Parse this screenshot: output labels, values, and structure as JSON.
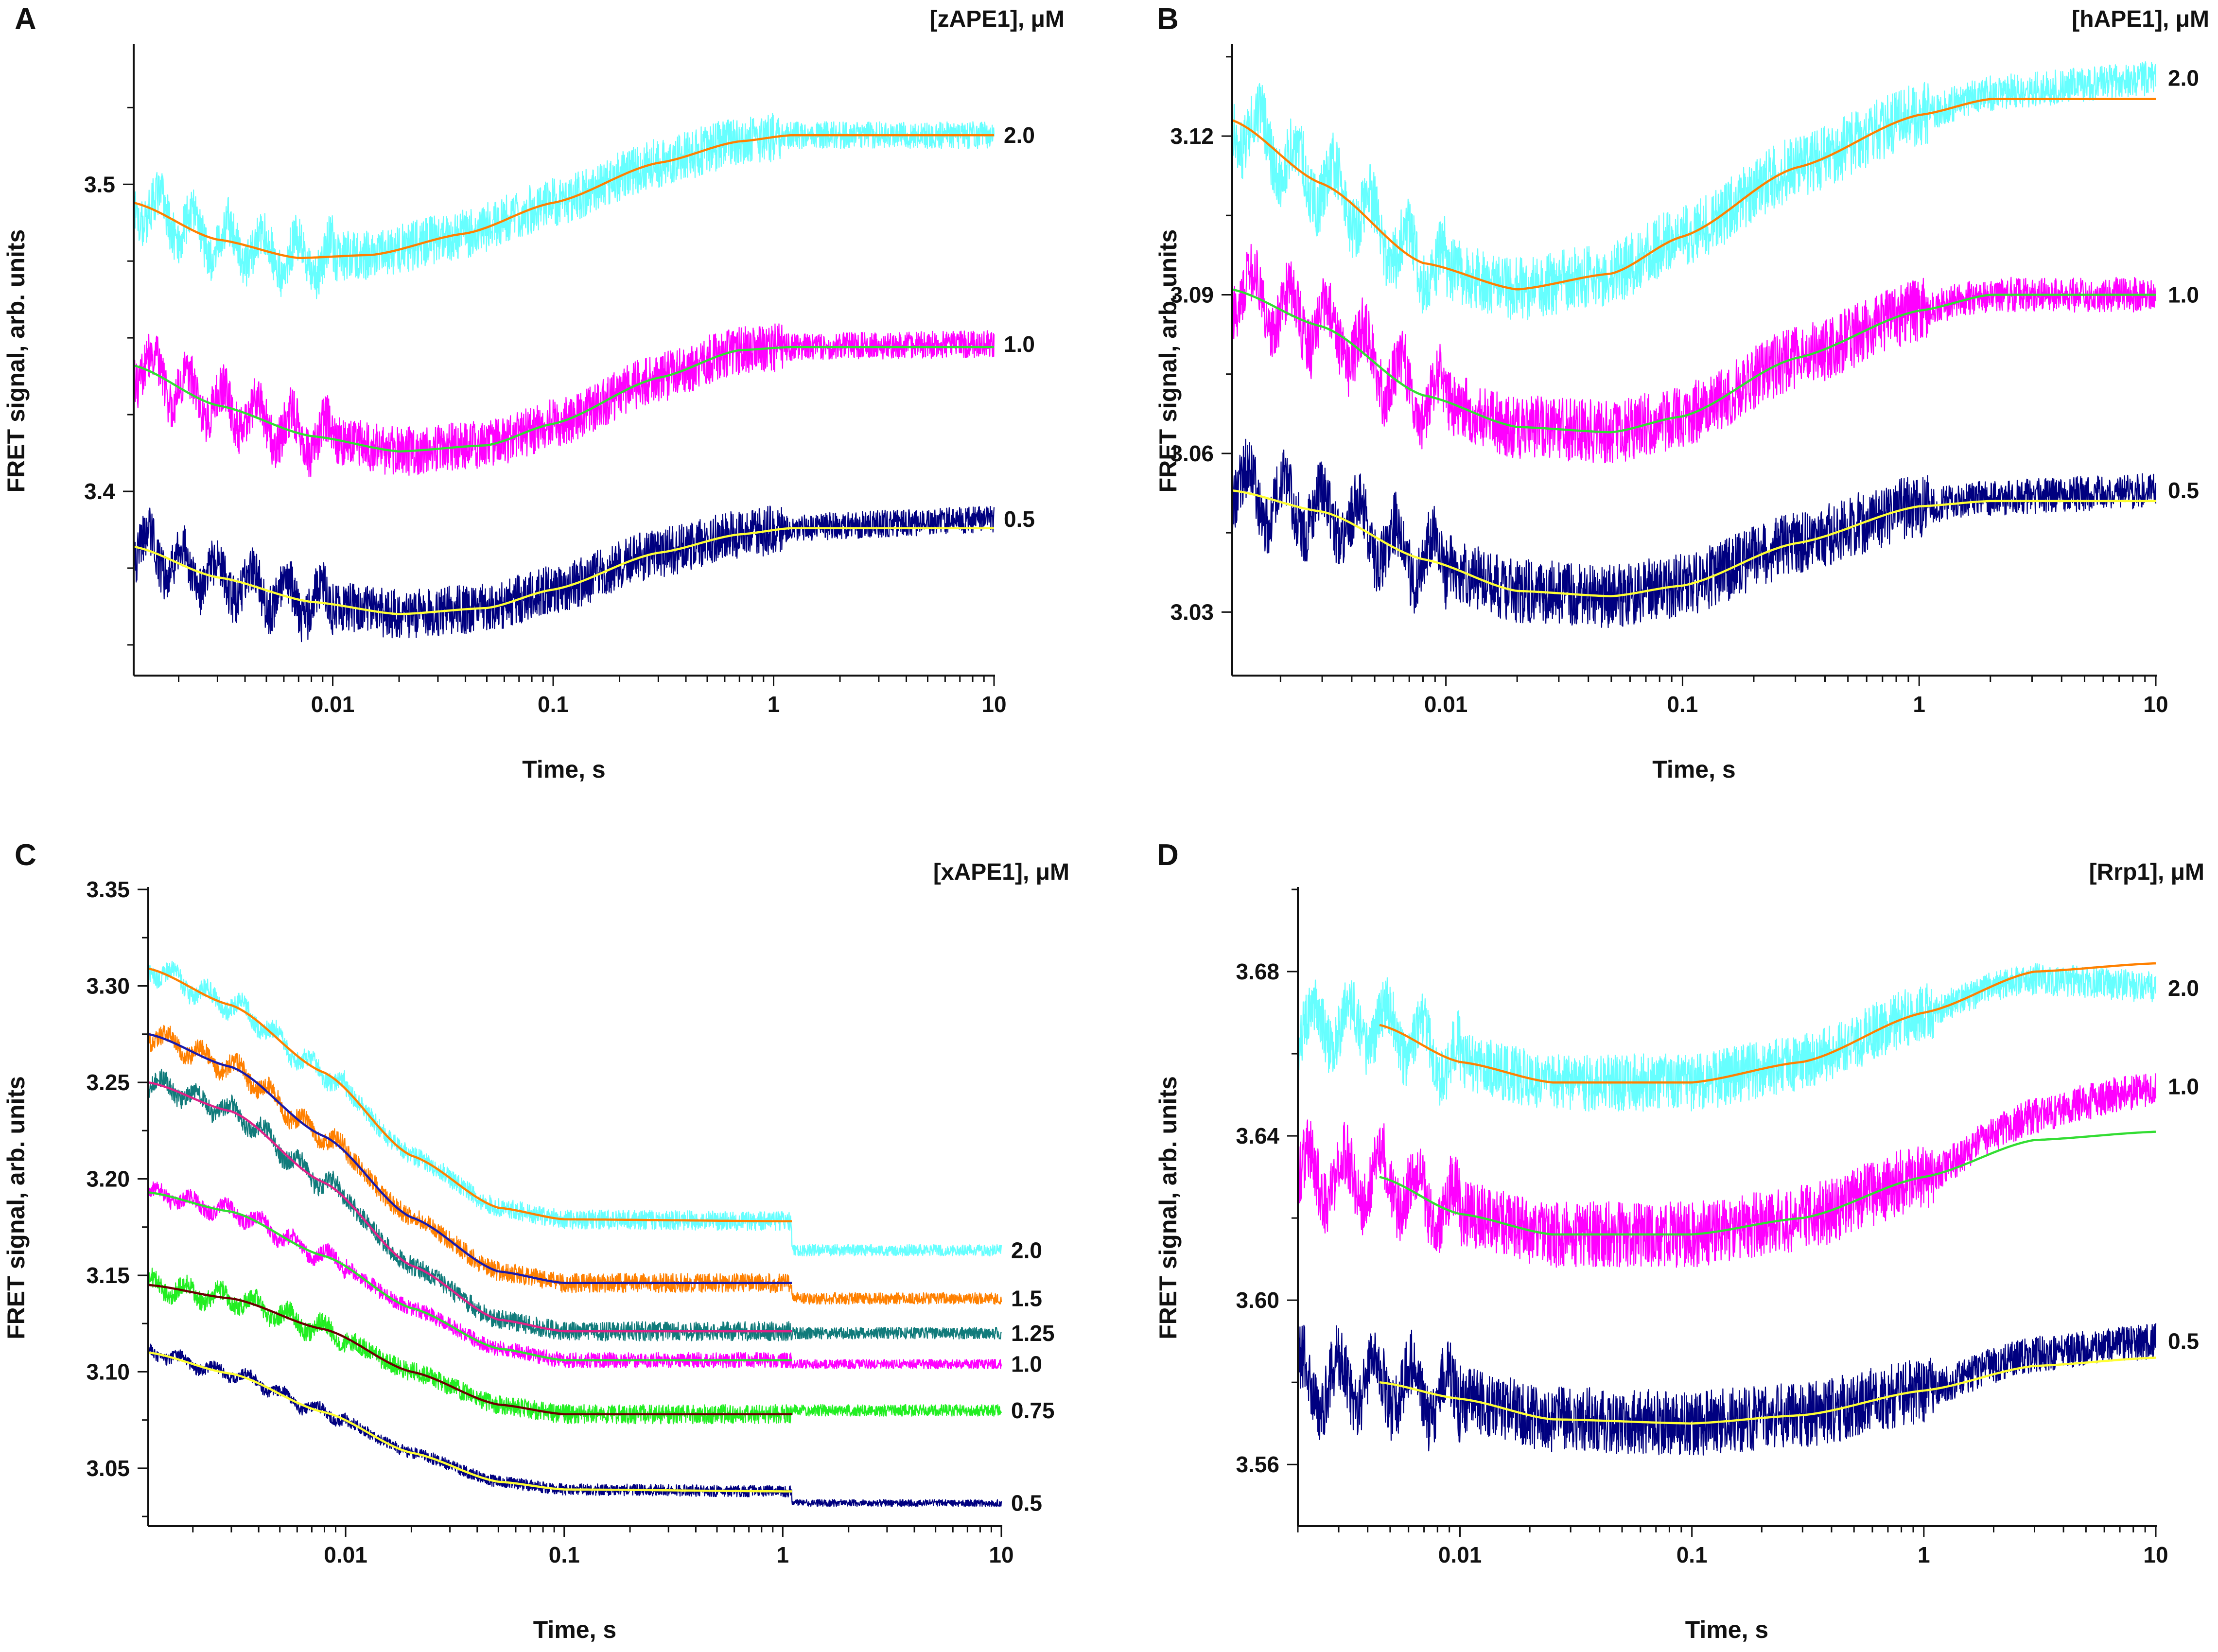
{
  "figure_title": "",
  "chart_data": [
    {
      "panel_label": "A",
      "type": "line",
      "title": "[zAPE1], μM",
      "xlabel": "Time, s",
      "ylabel": "FRET signal, arb. units",
      "x_scale": "log",
      "xlim": [
        0.00125,
        10
      ],
      "ylim": [
        3.34,
        3.545
      ],
      "x_ticks": [
        0.01,
        0.1,
        1,
        10
      ],
      "x_tick_labels": [
        "0.01",
        "0.1",
        "1",
        "10"
      ],
      "y_ticks": [
        3.4,
        3.5
      ],
      "y_tick_labels": [
        "3.4",
        "3.5"
      ],
      "y_minor_ticks": [
        3.35,
        3.375,
        3.425,
        3.45,
        3.475,
        3.525
      ],
      "grid": false,
      "series": [
        {
          "name": "2.0",
          "label": "2.0",
          "raw_color": "#66ffff",
          "fit_color": "#ff8000",
          "noise": 0.008,
          "level_end": 3.516,
          "fit": [
            [
              0.00125,
              3.494
            ],
            [
              0.003,
              3.482
            ],
            [
              0.007,
              3.476
            ],
            [
              0.015,
              3.477
            ],
            [
              0.04,
              3.484
            ],
            [
              0.1,
              3.494
            ],
            [
              0.3,
              3.507
            ],
            [
              0.7,
              3.514
            ],
            [
              1.2,
              3.516
            ],
            [
              10,
              3.516
            ]
          ]
        },
        {
          "name": "1.0",
          "label": "1.0",
          "raw_color": "#ff00ff",
          "fit_color": "#33dd33",
          "noise": 0.008,
          "level_end": 3.448,
          "fit": [
            [
              0.00125,
              3.441
            ],
            [
              0.003,
              3.428
            ],
            [
              0.008,
              3.418
            ],
            [
              0.02,
              3.413
            ],
            [
              0.05,
              3.415
            ],
            [
              0.1,
              3.422
            ],
            [
              0.3,
              3.437
            ],
            [
              0.7,
              3.446
            ],
            [
              1.2,
              3.447
            ],
            [
              10,
              3.447
            ]
          ]
        },
        {
          "name": "0.5",
          "label": "0.5",
          "raw_color": "#000080",
          "fit_color": "#ffff33",
          "noise": 0.008,
          "level_end": 3.391,
          "fit": [
            [
              0.00125,
              3.382
            ],
            [
              0.003,
              3.372
            ],
            [
              0.008,
              3.364
            ],
            [
              0.02,
              3.36
            ],
            [
              0.05,
              3.362
            ],
            [
              0.1,
              3.368
            ],
            [
              0.3,
              3.38
            ],
            [
              0.7,
              3.386
            ],
            [
              1.2,
              3.388
            ],
            [
              10,
              3.388
            ]
          ]
        }
      ]
    },
    {
      "panel_label": "B",
      "type": "line",
      "title": "[hAPE1], μM",
      "xlabel": "Time, s",
      "ylabel": "FRET signal, arb. units",
      "x_scale": "log",
      "xlim": [
        0.00125,
        10
      ],
      "ylim": [
        3.018,
        3.137
      ],
      "x_ticks": [
        0.01,
        0.1,
        1,
        10
      ],
      "x_tick_labels": [
        "0.01",
        "0.1",
        "1",
        "10"
      ],
      "y_ticks": [
        3.03,
        3.06,
        3.09,
        3.12
      ],
      "y_tick_labels": [
        "3.03",
        "3.06",
        "3.09",
        "3.12"
      ],
      "y_minor_ticks": [
        3.045,
        3.075,
        3.105,
        3.135
      ],
      "grid": false,
      "series": [
        {
          "name": "2.0",
          "label": "2.0",
          "raw_color": "#66ffff",
          "fit_color": "#ff8000",
          "noise": 0.006,
          "level_end": 3.131,
          "fit": [
            [
              0.00125,
              3.123
            ],
            [
              0.003,
              3.111
            ],
            [
              0.008,
              3.096
            ],
            [
              0.02,
              3.091
            ],
            [
              0.05,
              3.094
            ],
            [
              0.1,
              3.101
            ],
            [
              0.3,
              3.114
            ],
            [
              1.0,
              3.124
            ],
            [
              2.0,
              3.127
            ],
            [
              10,
              3.127
            ]
          ]
        },
        {
          "name": "1.0",
          "label": "1.0",
          "raw_color": "#ff00ff",
          "fit_color": "#33dd33",
          "noise": 0.006,
          "level_end": 3.09,
          "fit": [
            [
              0.00125,
              3.091
            ],
            [
              0.003,
              3.084
            ],
            [
              0.008,
              3.071
            ],
            [
              0.02,
              3.065
            ],
            [
              0.05,
              3.064
            ],
            [
              0.1,
              3.067
            ],
            [
              0.3,
              3.078
            ],
            [
              1.0,
              3.087
            ],
            [
              2.0,
              3.09
            ],
            [
              10,
              3.09
            ]
          ]
        },
        {
          "name": "0.5",
          "label": "0.5",
          "raw_color": "#000080",
          "fit_color": "#ffff33",
          "noise": 0.006,
          "level_end": 3.053,
          "fit": [
            [
              0.00125,
              3.053
            ],
            [
              0.003,
              3.049
            ],
            [
              0.008,
              3.04
            ],
            [
              0.02,
              3.034
            ],
            [
              0.05,
              3.033
            ],
            [
              0.1,
              3.035
            ],
            [
              0.3,
              3.043
            ],
            [
              1.0,
              3.05
            ],
            [
              2.0,
              3.051
            ],
            [
              10,
              3.051
            ]
          ]
        }
      ]
    },
    {
      "panel_label": "C",
      "type": "line",
      "title": "[xAPE1], μM",
      "xlabel": "Time, s",
      "ylabel": "FRET signal, arb. units",
      "x_scale": "log",
      "xlim": [
        0.00125,
        10
      ],
      "ylim": [
        3.02,
        3.35
      ],
      "x_ticks": [
        0.01,
        0.1,
        1,
        10
      ],
      "x_tick_labels": [
        "0.01",
        "0.1",
        "1",
        "10"
      ],
      "y_ticks": [
        3.05,
        3.1,
        3.15,
        3.2,
        3.25,
        3.3,
        3.35
      ],
      "y_tick_labels": [
        "3.05",
        "3.10",
        "3.15",
        "3.20",
        "3.25",
        "3.30",
        "3.35"
      ],
      "y_minor_ticks": [
        3.025,
        3.075,
        3.125,
        3.175,
        3.225,
        3.275,
        3.325
      ],
      "grid": false,
      "series": [
        {
          "name": "2.0",
          "label": "2.0",
          "raw_color": "#66ffff",
          "fit_color": "#ff8000",
          "noise": 0.005,
          "level_end": 3.163,
          "fit": [
            [
              0.00125,
              3.309
            ],
            [
              0.003,
              3.29
            ],
            [
              0.008,
              3.255
            ],
            [
              0.02,
              3.212
            ],
            [
              0.05,
              3.185
            ],
            [
              0.1,
              3.179
            ],
            [
              1.1,
              3.178
            ]
          ]
        },
        {
          "name": "1.5",
          "label": "1.5",
          "raw_color": "#ff8000",
          "fit_color": "#1a1aaa",
          "noise": 0.005,
          "level_end": 3.138,
          "fit": [
            [
              0.00125,
              3.275
            ],
            [
              0.003,
              3.258
            ],
            [
              0.008,
              3.222
            ],
            [
              0.02,
              3.18
            ],
            [
              0.05,
              3.152
            ],
            [
              0.1,
              3.146
            ],
            [
              1.1,
              3.146
            ]
          ]
        },
        {
          "name": "1.25",
          "label": "1.25",
          "raw_color": "#117b7b",
          "fit_color": "#dd2288",
          "noise": 0.005,
          "level_end": 3.12,
          "fit": [
            [
              0.00125,
              3.25
            ],
            [
              0.003,
              3.235
            ],
            [
              0.008,
              3.198
            ],
            [
              0.02,
              3.155
            ],
            [
              0.05,
              3.127
            ],
            [
              0.1,
              3.121
            ],
            [
              1.1,
              3.121
            ]
          ]
        },
        {
          "name": "1.0",
          "label": "1.0",
          "raw_color": "#ff00ff",
          "fit_color": "#33dd33",
          "noise": 0.004,
          "level_end": 3.104,
          "fit": [
            [
              0.00125,
              3.193
            ],
            [
              0.003,
              3.183
            ],
            [
              0.008,
              3.16
            ],
            [
              0.02,
              3.133
            ],
            [
              0.05,
              3.112
            ],
            [
              0.1,
              3.106
            ],
            [
              1.1,
              3.106
            ]
          ]
        },
        {
          "name": "0.75",
          "label": "0.75",
          "raw_color": "#22ee22",
          "fit_color": "#6b0000",
          "noise": 0.005,
          "level_end": 3.08,
          "fit": [
            [
              0.00125,
              3.145
            ],
            [
              0.003,
              3.138
            ],
            [
              0.008,
              3.122
            ],
            [
              0.02,
              3.1
            ],
            [
              0.05,
              3.083
            ],
            [
              0.1,
              3.078
            ],
            [
              1.1,
              3.078
            ]
          ]
        },
        {
          "name": "0.5",
          "label": "0.5",
          "raw_color": "#000080",
          "fit_color": "#ffff33",
          "noise": 0.003,
          "level_end": 3.032,
          "fit": [
            [
              0.00125,
              3.11
            ],
            [
              0.003,
              3.099
            ],
            [
              0.008,
              3.079
            ],
            [
              0.02,
              3.058
            ],
            [
              0.05,
              3.043
            ],
            [
              0.1,
              3.039
            ],
            [
              1.1,
              3.038
            ]
          ]
        }
      ]
    },
    {
      "panel_label": "D",
      "type": "line",
      "title": "[Rrp1], μM",
      "xlabel": "Time, s",
      "ylabel": "FRET signal, arb. units",
      "x_scale": "log",
      "xlim": [
        0.002,
        10
      ],
      "ylim": [
        3.545,
        3.7
      ],
      "x_ticks": [
        0.01,
        0.1,
        1,
        10
      ],
      "x_tick_labels": [
        "0.01",
        "0.1",
        "1",
        "10"
      ],
      "y_ticks": [
        3.56,
        3.6,
        3.64,
        3.68
      ],
      "y_tick_labels": [
        "3.56",
        "3.60",
        "3.64",
        "3.68"
      ],
      "y_minor_ticks": [
        3.58,
        3.62,
        3.66,
        3.7
      ],
      "grid": false,
      "series": [
        {
          "name": "2.0",
          "label": "2.0",
          "raw_color": "#66ffff",
          "fit_color": "#ff8000",
          "noise": 0.007,
          "level_end": 3.676,
          "fit": [
            [
              0.0045,
              3.667
            ],
            [
              0.01,
              3.658
            ],
            [
              0.025,
              3.653
            ],
            [
              0.1,
              3.653
            ],
            [
              0.3,
              3.658
            ],
            [
              1.0,
              3.67
            ],
            [
              3.0,
              3.68
            ],
            [
              10,
              3.682
            ]
          ]
        },
        {
          "name": "1.0",
          "label": "1.0",
          "raw_color": "#ff00ff",
          "fit_color": "#33dd33",
          "noise": 0.008,
          "level_end": 3.652,
          "fit": [
            [
              0.0045,
              3.63
            ],
            [
              0.01,
              3.621
            ],
            [
              0.025,
              3.616
            ],
            [
              0.1,
              3.616
            ],
            [
              0.3,
              3.62
            ],
            [
              1.0,
              3.63
            ],
            [
              3.0,
              3.639
            ],
            [
              10,
              3.641
            ]
          ]
        },
        {
          "name": "0.5",
          "label": "0.5",
          "raw_color": "#000080",
          "fit_color": "#ffff33",
          "noise": 0.008,
          "level_end": 3.59,
          "fit": [
            [
              0.0045,
              3.58
            ],
            [
              0.01,
              3.576
            ],
            [
              0.025,
              3.571
            ],
            [
              0.1,
              3.57
            ],
            [
              0.3,
              3.572
            ],
            [
              1.0,
              3.578
            ],
            [
              3.0,
              3.584
            ],
            [
              10,
              3.586
            ]
          ]
        }
      ]
    }
  ]
}
